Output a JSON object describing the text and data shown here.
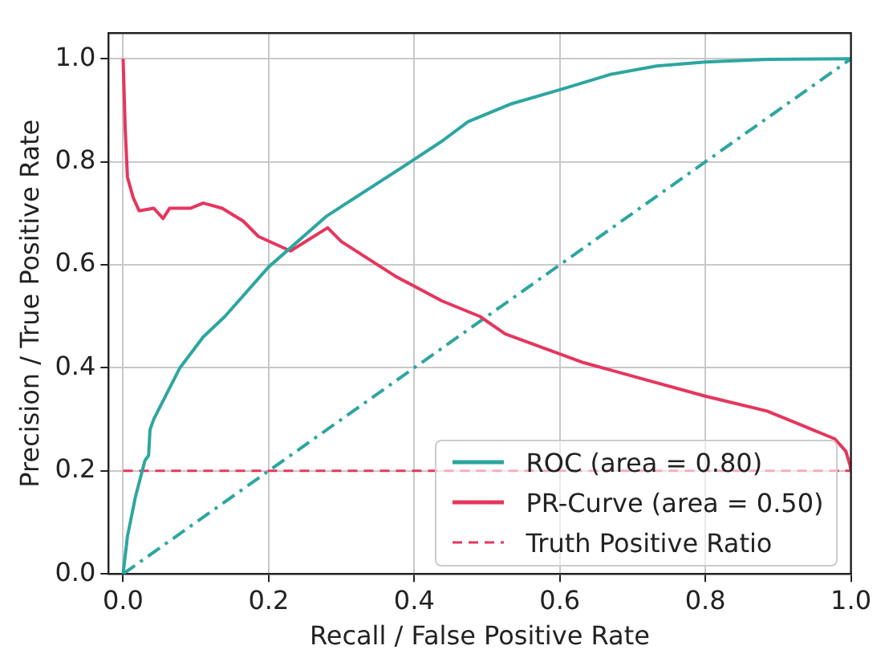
{
  "chart_data": {
    "type": "line",
    "xlabel": "Recall / False Positive Rate",
    "ylabel": "Precision / True Positive Rate",
    "xlim": [
      -0.02,
      1.0
    ],
    "ylim": [
      0,
      1.05
    ],
    "xticks": [
      {
        "value": 0,
        "label": "0.0"
      },
      0.2,
      0.4,
      0.6,
      0.8,
      {
        "value": 1,
        "label": "1.0"
      }
    ],
    "yticks": [
      {
        "value": 0,
        "label": "0.0"
      },
      0.2,
      0.4,
      0.6,
      0.8,
      {
        "value": 1,
        "label": "1.0"
      }
    ],
    "grid": true,
    "legend": "bottom right",
    "marker": "none",
    "series": [
      {
        "name": "ROC (area = 0.80)",
        "color": "#2ca6a0",
        "line_style": "solid",
        "x": [
          0,
          0.006,
          0.017,
          0.03,
          0.035,
          0.037,
          0.042,
          0.078,
          0.11,
          0.14,
          0.2,
          0.28,
          0.395,
          0.438,
          0.474,
          0.532,
          0.6,
          0.67,
          0.733,
          0.8,
          0.885,
          1.0
        ],
        "values": [
          0,
          0.073,
          0.15,
          0.22,
          0.23,
          0.28,
          0.3,
          0.4,
          0.46,
          0.5,
          0.596,
          0.695,
          0.8,
          0.84,
          0.878,
          0.912,
          0.94,
          0.97,
          0.986,
          0.994,
          0.999,
          1.0
        ]
      },
      {
        "name": "PR-Curve (area = 0.50)",
        "color": "#e5365e",
        "line_style": "solid",
        "x": [
          0,
          0.003,
          0.006,
          0.014,
          0.022,
          0.042,
          0.055,
          0.064,
          0.093,
          0.11,
          0.136,
          0.165,
          0.186,
          0.23,
          0.281,
          0.3,
          0.374,
          0.438,
          0.49,
          0.525,
          0.633,
          0.8,
          0.885,
          0.935,
          0.978,
          0.993,
          0.999,
          1.0
        ],
        "values": [
          1.0,
          0.86,
          0.77,
          0.73,
          0.705,
          0.71,
          0.69,
          0.71,
          0.71,
          0.72,
          0.71,
          0.685,
          0.655,
          0.627,
          0.672,
          0.645,
          0.578,
          0.53,
          0.5,
          0.466,
          0.41,
          0.345,
          0.316,
          0.287,
          0.262,
          0.238,
          0.21,
          0.2
        ]
      },
      {
        "color": "#2ca6a0",
        "line_style": "dashdot",
        "x": [
          0,
          1
        ],
        "values": [
          0,
          1
        ]
      }
    ],
    "ref_lines": [
      {
        "axis": "y",
        "value": 0.2,
        "label": "Truth Positive Ratio",
        "color": "#e5365e",
        "line_style": "dashed"
      }
    ]
  }
}
